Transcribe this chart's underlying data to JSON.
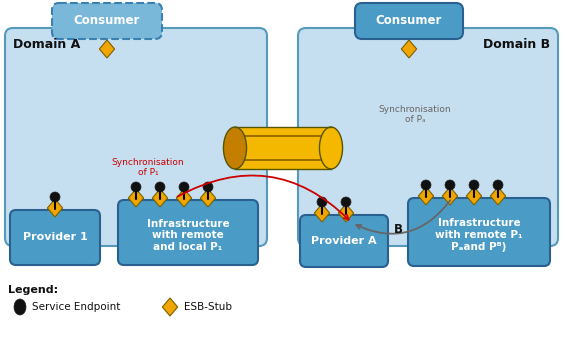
{
  "bg_color": "#ffffff",
  "domain_bg": "#c5dff0",
  "domain_border": "#6aafd4",
  "box_blue_dark": "#4a9cc7",
  "consumer_A_bg": "#7ab8d9",
  "consumer_B_bg": "#4a9cc7",
  "orange": "#f0a500",
  "orange_dark": "#c47e00",
  "orange_body": "#f5b800",
  "black": "#111111",
  "red": "#cc0000",
  "gray_arc": "#666666",
  "title_A": "Domain A",
  "title_B": "Domain B",
  "label_consumer_A": "Consumer",
  "label_consumer_B": "Consumer",
  "label_provider1": "Provider 1",
  "label_infra_A": "Infrastructure\nwith remote\nand local P₁",
  "label_provider_A": "Provider A",
  "label_infra_B": "Infrastructure\nwith remote P₁\nPₐand Pᴮ)",
  "label_sync_P1": "Synchronisation\nof P₁",
  "label_sync_PA": "Synchronisation\nof Pₐ",
  "label_legend": "Legend:",
  "label_service_ep": "Service Endpoint",
  "label_esb_stub": "ESB-Stub",
  "label_B": "B"
}
